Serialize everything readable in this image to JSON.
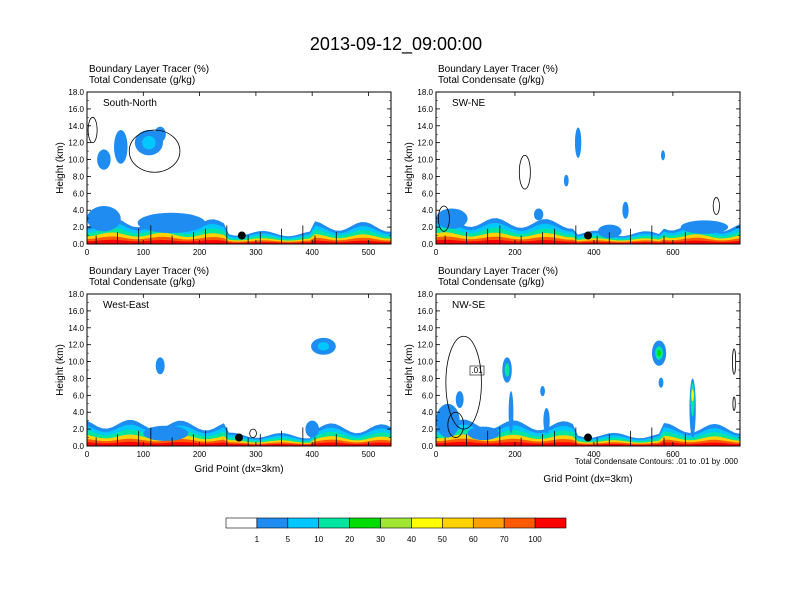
{
  "title": "2013-09-12_09:00:00",
  "panel_subtitles": [
    "Boundary Layer Tracer   (%)",
    "Total Condensate   (g/kg)"
  ],
  "ylabel": "Height (km)",
  "xlabel": "Grid Point (dx=3km)",
  "contour_note": "Total Condensate Contours: .01 to .01 by .000",
  "contour_label": ".01",
  "colorbar": {
    "levels": [
      "1",
      "5",
      "10",
      "20",
      "30",
      "40",
      "50",
      "60",
      "70",
      "100"
    ],
    "colors": [
      "#ffffff",
      "#1e8cf0",
      "#00c8ff",
      "#00e6a0",
      "#00dc00",
      "#a0e632",
      "#ffff00",
      "#ffd200",
      "#ffa000",
      "#ff5a00",
      "#ff0000"
    ]
  },
  "chart_data": [
    {
      "type": "heatmap",
      "name": "South-North",
      "xlim": [
        0,
        540
      ],
      "ylim": [
        0,
        18
      ],
      "xticks": [
        0,
        100,
        200,
        300,
        400,
        500
      ],
      "yticks": [
        "0.0",
        "2.0",
        "4.0",
        "6.0",
        "8.0",
        "10.0",
        "12.0",
        "14.0",
        "16.0",
        "18.0"
      ],
      "marker": {
        "x": 275,
        "y": 1.0
      },
      "blobs": [
        {
          "x": 30,
          "y": 10.0,
          "rx": 12,
          "ry": 1.2,
          "c": "#1e8cf0"
        },
        {
          "x": 60,
          "y": 11.5,
          "rx": 12,
          "ry": 2.0,
          "c": "#1e8cf0"
        },
        {
          "x": 110,
          "y": 12.0,
          "rx": 25,
          "ry": 1.5,
          "c": "#1e8cf0"
        },
        {
          "x": 110,
          "y": 12.0,
          "rx": 12,
          "ry": 0.8,
          "c": "#00c8ff"
        },
        {
          "x": 130,
          "y": 13.0,
          "rx": 10,
          "ry": 0.9,
          "c": "#1e8cf0"
        },
        {
          "x": 30,
          "y": 3.0,
          "rx": 30,
          "ry": 1.5,
          "c": "#1e8cf0"
        },
        {
          "x": 150,
          "y": 2.5,
          "rx": 60,
          "ry": 1.2,
          "c": "#1e8cf0"
        }
      ],
      "contours": [
        {
          "x": 120,
          "y": 11.0,
          "rx": 45,
          "ry": 2.5
        },
        {
          "x": 10,
          "y": 13.5,
          "rx": 8,
          "ry": 1.5
        }
      ]
    },
    {
      "type": "heatmap",
      "name": "SW-NE",
      "xlim": [
        0,
        770
      ],
      "ylim": [
        0,
        18
      ],
      "xticks": [
        0,
        200,
        400,
        600
      ],
      "yticks": [
        "0.0",
        "2.0",
        "4.0",
        "6.0",
        "8.0",
        "10.0",
        "12.0",
        "14.0",
        "16.0",
        "18.0"
      ],
      "marker": {
        "x": 385,
        "y": 1.0
      },
      "blobs": [
        {
          "x": 40,
          "y": 3.0,
          "rx": 40,
          "ry": 1.2,
          "c": "#1e8cf0"
        },
        {
          "x": 360,
          "y": 12.0,
          "rx": 8,
          "ry": 1.8,
          "c": "#1e8cf0"
        },
        {
          "x": 330,
          "y": 7.5,
          "rx": 6,
          "ry": 0.7,
          "c": "#1e8cf0"
        },
        {
          "x": 575,
          "y": 10.5,
          "rx": 5,
          "ry": 0.6,
          "c": "#1e8cf0"
        },
        {
          "x": 480,
          "y": 4.0,
          "rx": 8,
          "ry": 1.0,
          "c": "#1e8cf0"
        },
        {
          "x": 440,
          "y": 1.5,
          "rx": 30,
          "ry": 0.8,
          "c": "#1e8cf0"
        },
        {
          "x": 680,
          "y": 2.0,
          "rx": 60,
          "ry": 0.8,
          "c": "#1e8cf0"
        },
        {
          "x": 260,
          "y": 3.5,
          "rx": 12,
          "ry": 0.7,
          "c": "#1e8cf0"
        }
      ],
      "contours": [
        {
          "x": 225,
          "y": 8.5,
          "rx": 14,
          "ry": 2.0
        },
        {
          "x": 710,
          "y": 4.5,
          "rx": 8,
          "ry": 1.0
        },
        {
          "x": 20,
          "y": 3.0,
          "rx": 14,
          "ry": 1.5
        }
      ]
    },
    {
      "type": "heatmap",
      "name": "West-East",
      "xlim": [
        0,
        540
      ],
      "ylim": [
        0,
        18
      ],
      "xticks": [
        0,
        100,
        200,
        300,
        400,
        500
      ],
      "yticks": [
        "0.0",
        "2.0",
        "4.0",
        "6.0",
        "8.0",
        "10.0",
        "12.0",
        "14.0",
        "16.0",
        "18.0"
      ],
      "marker": {
        "x": 270,
        "y": 1.0
      },
      "blobs": [
        {
          "x": 130,
          "y": 9.5,
          "rx": 8,
          "ry": 1.0,
          "c": "#1e8cf0"
        },
        {
          "x": 420,
          "y": 11.8,
          "rx": 22,
          "ry": 1.0,
          "c": "#1e8cf0"
        },
        {
          "x": 420,
          "y": 11.8,
          "rx": 10,
          "ry": 0.5,
          "c": "#00c8ff"
        },
        {
          "x": 140,
          "y": 1.5,
          "rx": 40,
          "ry": 0.9,
          "c": "#1e8cf0"
        },
        {
          "x": 400,
          "y": 2.0,
          "rx": 12,
          "ry": 1.0,
          "c": "#1e8cf0"
        }
      ],
      "contours": [
        {
          "x": 295,
          "y": 1.5,
          "rx": 6,
          "ry": 0.5
        }
      ]
    },
    {
      "type": "heatmap",
      "name": "NW-SE",
      "xlim": [
        0,
        770
      ],
      "ylim": [
        0,
        18
      ],
      "xticks": [
        0,
        200,
        400,
        600
      ],
      "yticks": [
        "0.0",
        "2.0",
        "4.0",
        "6.0",
        "8.0",
        "10.0",
        "12.0",
        "14.0",
        "16.0",
        "18.0"
      ],
      "marker": {
        "x": 385,
        "y": 1.0
      },
      "blobs": [
        {
          "x": 30,
          "y": 3.0,
          "rx": 30,
          "ry": 2.0,
          "c": "#1e8cf0"
        },
        {
          "x": 60,
          "y": 5.5,
          "rx": 10,
          "ry": 1.0,
          "c": "#1e8cf0"
        },
        {
          "x": 180,
          "y": 9.0,
          "rx": 12,
          "ry": 1.5,
          "c": "#1e8cf0"
        },
        {
          "x": 180,
          "y": 9.0,
          "rx": 6,
          "ry": 0.8,
          "c": "#00e6a0"
        },
        {
          "x": 190,
          "y": 4.0,
          "rx": 6,
          "ry": 2.5,
          "c": "#1e8cf0"
        },
        {
          "x": 270,
          "y": 6.5,
          "rx": 6,
          "ry": 0.6,
          "c": "#1e8cf0"
        },
        {
          "x": 280,
          "y": 3.0,
          "rx": 8,
          "ry": 1.5,
          "c": "#1e8cf0"
        },
        {
          "x": 565,
          "y": 11.0,
          "rx": 18,
          "ry": 1.5,
          "c": "#1e8cf0"
        },
        {
          "x": 565,
          "y": 11.0,
          "rx": 10,
          "ry": 0.8,
          "c": "#00e6a0"
        },
        {
          "x": 565,
          "y": 11.0,
          "rx": 5,
          "ry": 0.4,
          "c": "#00dc00"
        },
        {
          "x": 570,
          "y": 7.5,
          "rx": 6,
          "ry": 0.6,
          "c": "#1e8cf0"
        },
        {
          "x": 650,
          "y": 4.5,
          "rx": 8,
          "ry": 3.5,
          "c": "#1e8cf0"
        },
        {
          "x": 650,
          "y": 5.5,
          "rx": 5,
          "ry": 2.0,
          "c": "#00e6a0"
        },
        {
          "x": 650,
          "y": 6.0,
          "rx": 3,
          "ry": 0.7,
          "c": "#ffff00"
        },
        {
          "x": 120,
          "y": 1.5,
          "rx": 40,
          "ry": 0.8,
          "c": "#1e8cf0"
        }
      ],
      "contours": [
        {
          "x": 70,
          "y": 7.5,
          "rx": 45,
          "ry": 5.5
        },
        {
          "x": 50,
          "y": 2.5,
          "rx": 20,
          "ry": 1.5
        },
        {
          "x": 755,
          "y": 10.0,
          "rx": 4,
          "ry": 1.5
        },
        {
          "x": 755,
          "y": 5.0,
          "rx": 3,
          "ry": 0.8
        }
      ]
    }
  ]
}
